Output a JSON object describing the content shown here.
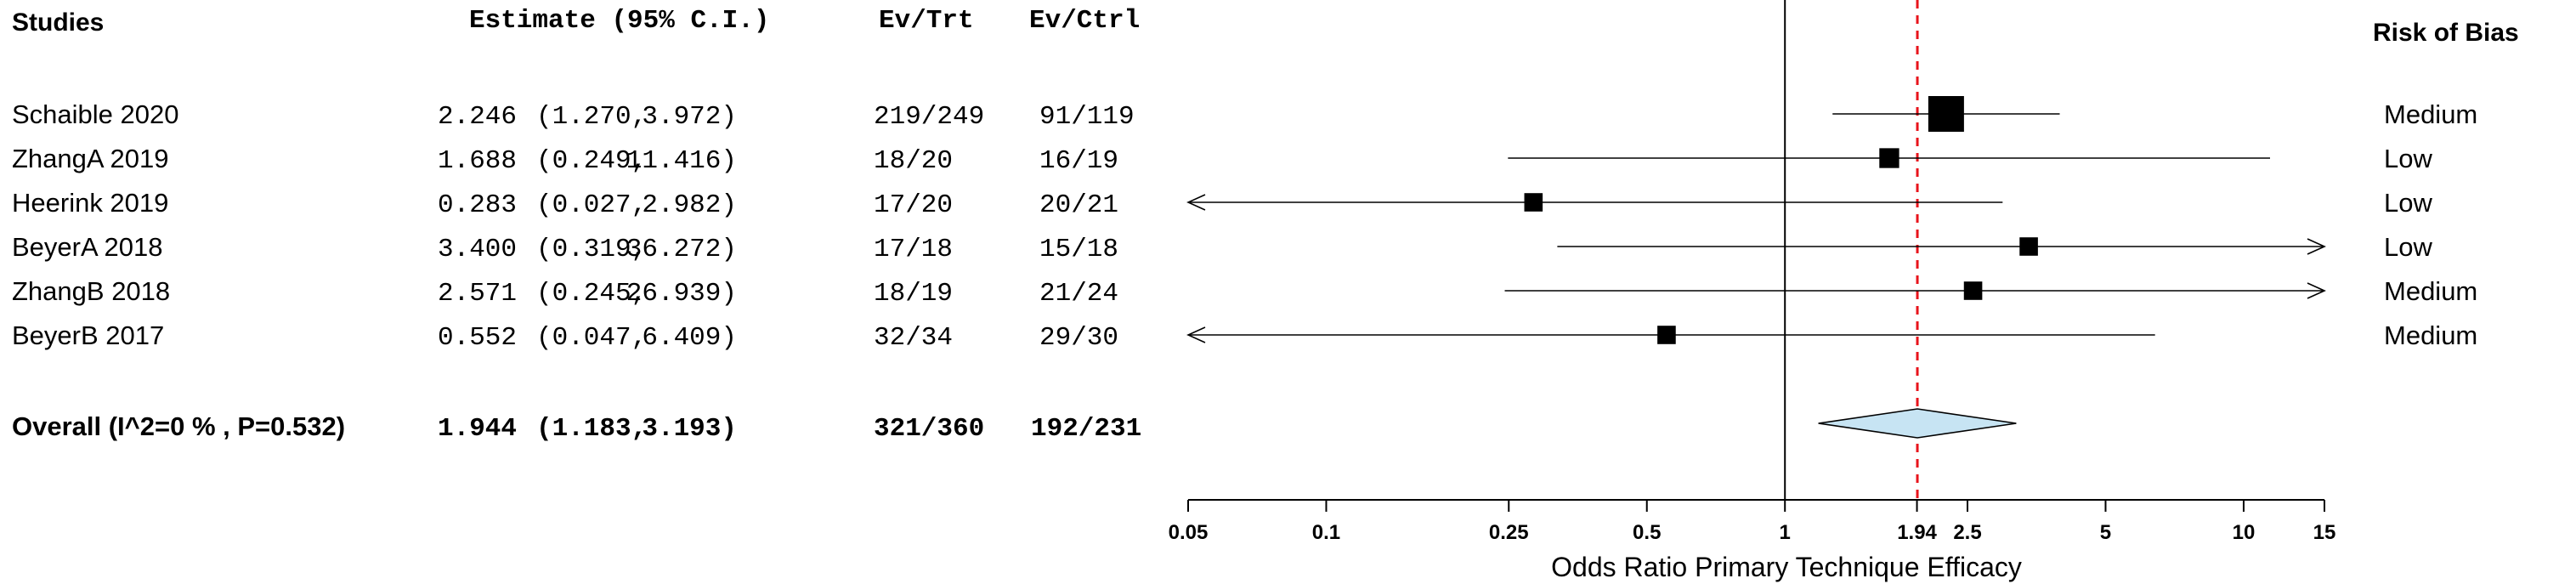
{
  "headers": {
    "studies": "Studies",
    "estimate": "Estimate (95% C.I.)",
    "ev_trt": "Ev/Trt",
    "ev_ctrl": "Ev/Ctrl",
    "risk": "Risk of Bias"
  },
  "chart_data": {
    "type": "forest",
    "xlabel": "Odds Ratio Primary Technique Efficacy",
    "x_scale": "log",
    "xlim": [
      0.05,
      15
    ],
    "x_ticks": [
      0.05,
      0.1,
      0.25,
      0.5,
      1,
      1.94,
      2.5,
      5,
      10,
      15
    ],
    "x_tick_labels": [
      "0.05",
      "0.1",
      "0.25",
      "0.5",
      "1",
      "1.94",
      "2.5",
      "5",
      "10",
      "15"
    ],
    "null_line": 1,
    "summary_line": 1.944,
    "summary_line_color": "#e8131b",
    "diamond_color": "#c7e4f3",
    "studies": [
      {
        "name": "Schaible 2020",
        "est": 2.246,
        "lo": 1.27,
        "hi": 3.972,
        "est_text": "2.246",
        "lo_text": "(1.270,",
        "hi_text": "3.972)",
        "ev_trt": "219/249",
        "ev_ctrl": "91/119",
        "risk": "Medium",
        "weight": 1.0
      },
      {
        "name": "ZhangA 2019",
        "est": 1.688,
        "lo": 0.249,
        "hi": 11.416,
        "est_text": "1.688",
        "lo_text": "(0.249,",
        "hi_text": "11.416)",
        "ev_trt": "18/20",
        "ev_ctrl": "16/19",
        "risk": "Low",
        "weight": 0.45
      },
      {
        "name": "Heerink 2019",
        "est": 0.283,
        "lo": 0.027,
        "hi": 2.982,
        "est_text": "0.283",
        "lo_text": "(0.027,",
        "hi_text": "2.982)",
        "ev_trt": "17/20",
        "ev_ctrl": "20/21",
        "risk": "Low",
        "weight": 0.4
      },
      {
        "name": "BeyerA 2018",
        "est": 3.4,
        "lo": 0.319,
        "hi": 36.272,
        "est_text": "3.400",
        "lo_text": "(0.319,",
        "hi_text": "36.272)",
        "ev_trt": "17/18",
        "ev_ctrl": "15/18",
        "risk": "Low",
        "weight": 0.4
      },
      {
        "name": "ZhangB 2018",
        "est": 2.571,
        "lo": 0.245,
        "hi": 26.939,
        "est_text": "2.571",
        "lo_text": "(0.245,",
        "hi_text": "26.939)",
        "ev_trt": "18/19",
        "ev_ctrl": "21/24",
        "risk": "Medium",
        "weight": 0.4
      },
      {
        "name": "BeyerB 2017",
        "est": 0.552,
        "lo": 0.047,
        "hi": 6.409,
        "est_text": "0.552",
        "lo_text": "(0.047,",
        "hi_text": "6.409)",
        "ev_trt": "32/34",
        "ev_ctrl": "29/30",
        "risk": "Medium",
        "weight": 0.4
      }
    ],
    "overall": {
      "name": "Overall (I^2=0 % , P=0.532)",
      "est": 1.944,
      "lo": 1.183,
      "hi": 3.193,
      "est_text": "1.944",
      "lo_text": "(1.183,",
      "hi_text": "3.193)",
      "ev_trt": "321/360",
      "ev_ctrl": "192/231"
    }
  }
}
